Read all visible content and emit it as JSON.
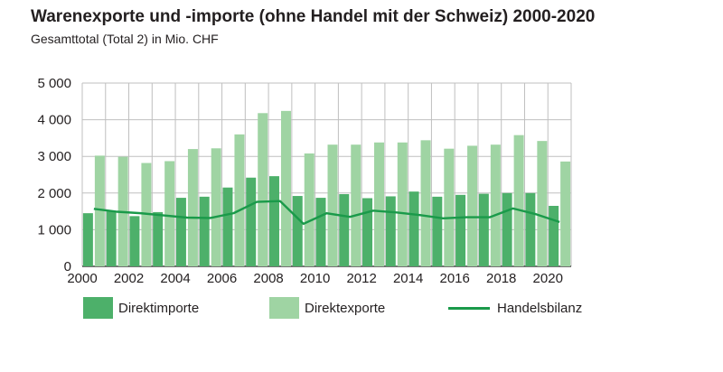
{
  "title": "Warenexporte und -importe (ohne Handel mit der Schweiz) 2000-2020",
  "subtitle": "Gesamttotal (Total 2) in Mio. CHF",
  "colors": {
    "imports": "#4db06a",
    "exports": "#9fd4a3",
    "balance": "#1a9a4a",
    "grid": "#bfbfbf"
  },
  "legend": {
    "imports": "Direktimporte",
    "exports": "Direktexporte",
    "balance": "Handelsbilanz"
  },
  "chart_data": {
    "type": "bar",
    "years": [
      2000,
      2001,
      2002,
      2003,
      2004,
      2005,
      2006,
      2007,
      2008,
      2009,
      2010,
      2011,
      2012,
      2013,
      2014,
      2015,
      2016,
      2017,
      2018,
      2019,
      2020
    ],
    "xticks": [
      "2000",
      "2002",
      "2004",
      "2006",
      "2008",
      "2010",
      "2012",
      "2014",
      "2016",
      "2018",
      "2020"
    ],
    "yticks": [
      "0",
      "1 000",
      "2 000",
      "3 000",
      "4 000",
      "5 000"
    ],
    "ylim": [
      0,
      5000
    ],
    "grid": true,
    "legend_position": "bottom",
    "series": [
      {
        "name": "Direktimporte",
        "type": "bar",
        "values": [
          1450,
          1500,
          1370,
          1480,
          1870,
          1900,
          2150,
          2420,
          2460,
          1920,
          1870,
          1970,
          1860,
          1910,
          2040,
          1900,
          1950,
          1980,
          2000,
          2000,
          1650
        ]
      },
      {
        "name": "Direktexporte",
        "type": "bar",
        "values": [
          3020,
          2990,
          2820,
          2870,
          3200,
          3220,
          3600,
          4180,
          4240,
          3080,
          3320,
          3320,
          3380,
          3380,
          3440,
          3210,
          3290,
          3320,
          3580,
          3420,
          2860
        ]
      },
      {
        "name": "Handelsbilanz",
        "type": "line",
        "values": [
          1570,
          1490,
          1450,
          1390,
          1330,
          1320,
          1450,
          1760,
          1780,
          1160,
          1450,
          1350,
          1520,
          1470,
          1400,
          1310,
          1340,
          1340,
          1580,
          1420,
          1210
        ]
      }
    ]
  }
}
